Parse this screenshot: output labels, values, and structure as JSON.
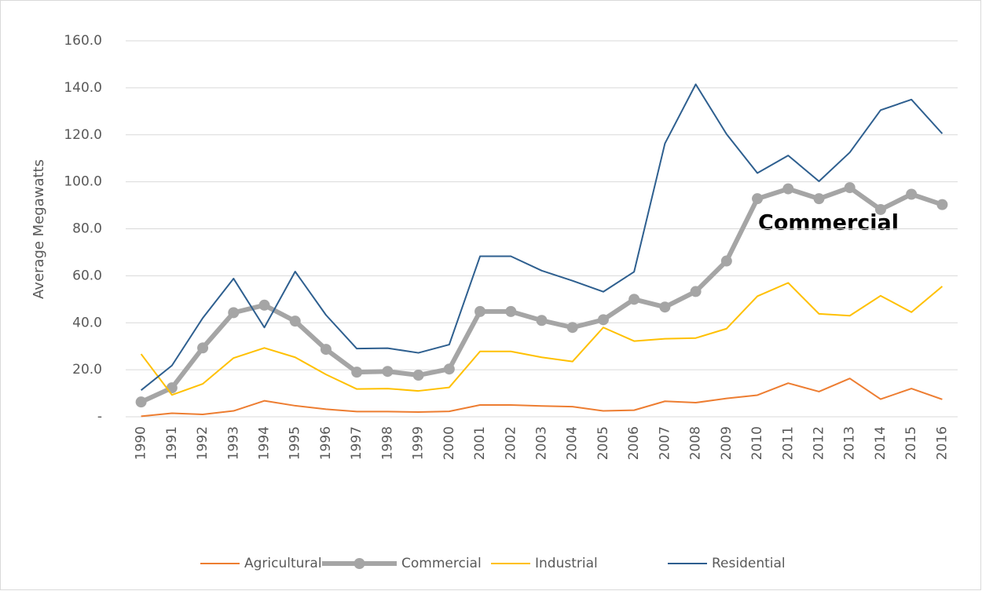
{
  "chart_data": {
    "type": "line",
    "y_label": "Average Megawatts",
    "annotation": "Commercial",
    "categories": [
      "1990",
      "1991",
      "1992",
      "1993",
      "1994",
      "1995",
      "1996",
      "1997",
      "1998",
      "1999",
      "2000",
      "2001",
      "2002",
      "2003",
      "2004",
      "2005",
      "2006",
      "2007",
      "2008",
      "2009",
      "2010",
      "2011",
      "2012",
      "2013",
      "2014",
      "2015",
      "2016"
    ],
    "series": [
      {
        "name": "Agricultural",
        "color": "#ed7d31",
        "values": [
          0.2,
          1.5,
          1.0,
          2.5,
          6.8,
          4.7,
          3.2,
          2.2,
          2.2,
          2.0,
          2.3,
          5.0,
          5.0,
          4.6,
          4.3,
          2.5,
          2.8,
          6.6,
          6.0,
          7.8,
          9.2,
          14.3,
          10.7,
          16.3,
          7.5,
          12.0,
          7.4
        ]
      },
      {
        "name": "Commercial",
        "color": "#a5a5a5",
        "markers": true,
        "values": [
          6.3,
          12.3,
          29.3,
          44.3,
          47.5,
          40.7,
          28.7,
          19.0,
          19.3,
          17.7,
          20.3,
          44.8,
          44.8,
          41.0,
          38.0,
          41.3,
          50.0,
          46.7,
          53.3,
          66.3,
          92.8,
          97.0,
          92.8,
          97.5,
          88.2,
          94.7,
          90.3
        ]
      },
      {
        "name": "Industrial",
        "color": "#ffc000",
        "values": [
          26.7,
          9.3,
          14.0,
          25.0,
          29.3,
          25.3,
          18.0,
          11.8,
          12.0,
          11.0,
          12.5,
          27.8,
          27.8,
          25.3,
          23.5,
          38.0,
          32.2,
          33.2,
          33.5,
          37.5,
          51.3,
          57.0,
          43.8,
          43.0,
          51.5,
          44.5,
          55.5
        ]
      },
      {
        "name": "Residential",
        "color": "#2e5f8f",
        "values": [
          11.3,
          21.8,
          42.0,
          58.8,
          38.0,
          61.8,
          43.3,
          29.0,
          29.2,
          27.2,
          30.7,
          68.3,
          68.3,
          62.2,
          57.9,
          53.2,
          61.7,
          116.3,
          141.5,
          120.3,
          103.7,
          111.2,
          100.2,
          112.5,
          130.5,
          135.0,
          120.5
        ]
      }
    ],
    "ylim": [
      0,
      160
    ],
    "yticks": [
      {
        "value": 0,
        "label": "-"
      },
      {
        "value": 20,
        "label": "20.0"
      },
      {
        "value": 40,
        "label": "40.0"
      },
      {
        "value": 60,
        "label": "60.0"
      },
      {
        "value": 80,
        "label": "80.0"
      },
      {
        "value": 100,
        "label": "100.0"
      },
      {
        "value": 120,
        "label": "120.0"
      },
      {
        "value": 140,
        "label": "140.0"
      },
      {
        "value": 160,
        "label": "160.0"
      }
    ],
    "grid": true,
    "legend": "bottom"
  }
}
